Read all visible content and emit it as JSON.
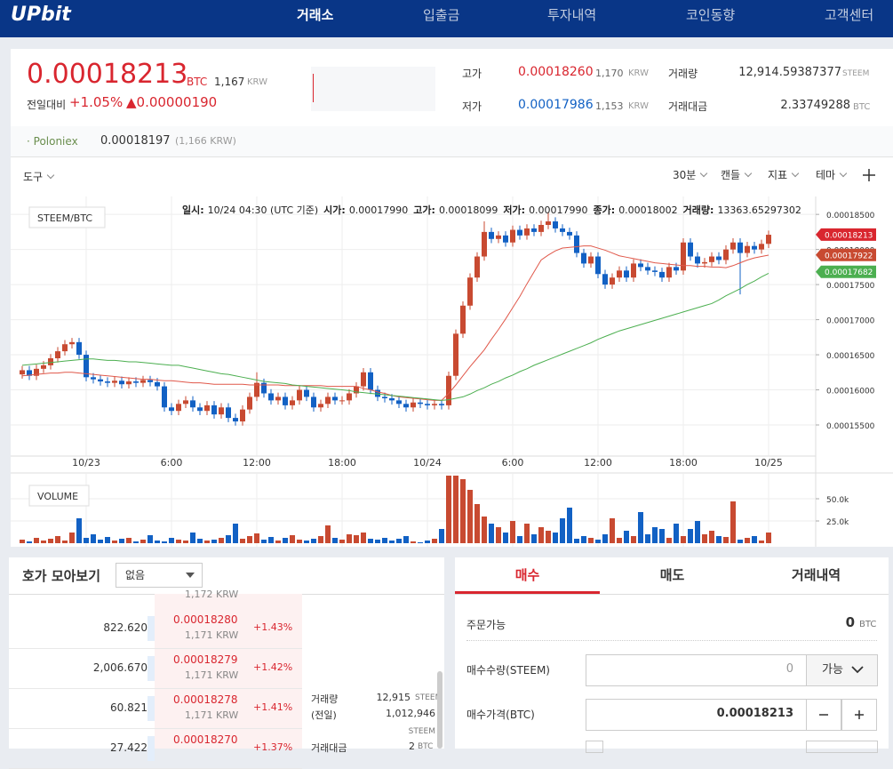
{
  "nav": {
    "logo": "UPbit",
    "items": [
      "거래소",
      "입출금",
      "투자내역",
      "코인동향",
      "고객센터"
    ]
  },
  "ticker": {
    "price": "0.00018213",
    "unit": "BTC",
    "krw": "1,167",
    "krw_unit": "KRW",
    "change_label": "전일대비",
    "change_pct": "+1.05%",
    "change_amt": "▲0.00000190"
  },
  "stats": {
    "high": {
      "label": "고가",
      "value": "0.00018260",
      "krw": "1,170",
      "unit": "KRW"
    },
    "low": {
      "label": "저가",
      "value": "0.00017986",
      "krw": "1,153",
      "unit": "KRW"
    },
    "volume": {
      "label": "거래량",
      "value": "12,914.59387377",
      "unit": "STEEM"
    },
    "amount": {
      "label": "거래대금",
      "value": "2.33749288",
      "unit": "BTC"
    }
  },
  "exchange": {
    "name": "· Poloniex",
    "price": "0.00018197",
    "krw": "(1,166 KRW)"
  },
  "toolbar": {
    "left": "도구",
    "right": [
      "30분",
      "캔들",
      "지표",
      "테마"
    ]
  },
  "chart_data": {
    "type": "candlestick",
    "symbol": "STEEM/BTC",
    "info": [
      {
        "label": "일시:",
        "value": "10/24 04:30 (UTC 기준)"
      },
      {
        "label": "시가:",
        "value": "0.00017990"
      },
      {
        "label": "고가:",
        "value": "0.00018099"
      },
      {
        "label": "저가:",
        "value": "0.00017990"
      },
      {
        "label": "종가:",
        "value": "0.00018002"
      },
      {
        "label": "거래량:",
        "value": "13363.65297302"
      }
    ],
    "categories": [
      null,
      null,
      null,
      null,
      null,
      null,
      null,
      null,
      null,
      "10/23",
      null,
      null,
      null,
      null,
      null,
      null,
      null,
      null,
      null,
      null,
      null,
      "6:00",
      null,
      null,
      null,
      null,
      null,
      null,
      null,
      null,
      null,
      null,
      null,
      "12:00",
      null,
      null,
      null,
      null,
      null,
      null,
      null,
      null,
      null,
      null,
      null,
      "18:00",
      null,
      null,
      null,
      null,
      null,
      null,
      null,
      null,
      null,
      null,
      null,
      "10/24",
      null,
      null,
      null,
      null,
      null,
      null,
      null,
      null,
      null,
      null,
      null,
      "6:00",
      null,
      null,
      null,
      null,
      null,
      null,
      null,
      null,
      null,
      null,
      null,
      "12:00",
      null,
      null,
      null,
      null,
      null,
      null,
      null,
      null,
      null,
      null,
      null,
      "18:00",
      null,
      null,
      null,
      null,
      null,
      null,
      null,
      null,
      null,
      null,
      null,
      "10/25"
    ],
    "open": [
      0.0001622,
      0.0001628,
      0.000162,
      0.000163,
      0.0001635,
      0.0001645,
      0.0001655,
      0.0001665,
      0.0001668,
      0.000165,
      0.0001618,
      0.0001615,
      0.0001612,
      0.000161,
      0.0001613,
      0.0001608,
      0.0001612,
      0.000161,
      0.0001614,
      0.0001611,
      0.0001605,
      0.0001575,
      0.000157,
      0.000158,
      0.0001585,
      0.0001575,
      0.000157,
      0.0001578,
      0.0001565,
      0.0001575,
      0.000156,
      0.0001555,
      0.0001572,
      0.000159,
      0.000161,
      0.0001595,
      0.0001585,
      0.000159,
      0.0001578,
      0.0001585,
      0.00016,
      0.000159,
      0.0001575,
      0.000158,
      0.000159,
      0.0001585,
      0.0001585,
      0.0001595,
      0.0001605,
      0.0001625,
      0.00016,
      0.000159,
      0.0001588,
      0.0001585,
      0.000158,
      0.0001575,
      0.0001582,
      0.000158,
      0.0001578,
      0.000158,
      0.0001578,
      0.000162,
      0.000168,
      0.000172,
      0.000176,
      0.000179,
      0.0001825,
      0.0001815,
      0.000182,
      0.000181,
      0.0001828,
      0.000182,
      0.000183,
      0.0001825,
      0.0001835,
      0.000184,
      0.000183,
      0.0001825,
      0.000182,
      0.0001795,
      0.000178,
      0.000179,
      0.0001765,
      0.000175,
      0.000176,
      0.000177,
      0.000176,
      0.000178,
      0.0001775,
      0.000177,
      0.0001768,
      0.000176,
      0.0001775,
      0.000177,
      0.000181,
      0.000179,
      0.000178,
      0.0001782,
      0.000179,
      0.0001785,
      0.00018,
      0.000181,
      0.0001795,
      0.0001805,
      0.00018,
      0.0001808
    ],
    "high": [
      0.0001634,
      0.0001634,
      0.0001636,
      0.0001641,
      0.0001651,
      0.0001661,
      0.0001671,
      0.0001674,
      0.0001674,
      0.0001656,
      0.0001624,
      0.0001621,
      0.0001618,
      0.0001619,
      0.0001619,
      0.0001618,
      0.0001618,
      0.000162,
      0.000162,
      0.0001617,
      0.0001611,
      0.0001581,
      0.0001586,
      0.0001591,
      0.0001591,
      0.0001581,
      0.0001584,
      0.0001584,
      0.0001581,
      0.0001581,
      0.0001566,
      0.0001578,
      0.0001596,
      0.0001625,
      0.0001616,
      0.0001601,
      0.0001596,
      0.0001596,
      0.0001591,
      0.0001606,
      0.0001606,
      0.0001596,
      0.0001586,
      0.0001596,
      0.0001596,
      0.0001591,
      0.0001601,
      0.0001611,
      0.0001631,
      0.0001631,
      0.0001606,
      0.0001596,
      0.0001594,
      0.0001591,
      0.0001586,
      0.0001588,
      0.0001588,
      0.0001586,
      0.0001586,
      0.0001586,
      0.0001626,
      0.0001686,
      0.0001726,
      0.0001766,
      0.0001796,
      0.000184,
      0.0001831,
      0.0001826,
      0.0001826,
      0.0001834,
      0.0001834,
      0.0001836,
      0.0001836,
      0.0001841,
      0.0001853,
      0.0001846,
      0.0001836,
      0.0001831,
      0.0001826,
      0.0001801,
      0.0001796,
      0.0001796,
      0.0001771,
      0.0001766,
      0.0001776,
      0.0001776,
      0.0001786,
      0.0001786,
      0.0001781,
      0.0001776,
      0.0001774,
      0.0001781,
      0.0001781,
      0.0001816,
      0.0001816,
      0.0001796,
      0.0001788,
      0.0001796,
      0.0001796,
      0.0001806,
      0.0001816,
      0.0001816,
      0.0001811,
      0.0001811,
      0.0001814,
      0.0001827
    ],
    "low": [
      0.0001616,
      0.0001614,
      0.0001614,
      0.0001624,
      0.0001629,
      0.0001639,
      0.0001649,
      0.0001659,
      0.0001644,
      0.0001612,
      0.0001609,
      0.0001606,
      0.0001604,
      0.0001604,
      0.0001602,
      0.0001602,
      0.0001604,
      0.0001604,
      0.0001605,
      0.0001599,
      0.0001569,
      0.0001564,
      0.0001564,
      0.0001574,
      0.0001569,
      0.0001564,
      0.0001564,
      0.0001559,
      0.0001559,
      0.0001554,
      0.0001549,
      0.0001549,
      0.0001566,
      0.0001584,
      0.0001589,
      0.0001579,
      0.0001579,
      0.0001572,
      0.0001572,
      0.0001579,
      0.0001584,
      0.0001569,
      0.0001569,
      0.0001574,
      0.0001579,
      0.0001579,
      0.0001579,
      0.0001589,
      0.0001599,
      0.0001594,
      0.0001584,
      0.0001582,
      0.0001579,
      0.0001574,
      0.0001569,
      0.0001569,
      0.0001574,
      0.0001572,
      0.0001572,
      0.0001572,
      0.0001572,
      0.0001614,
      0.0001674,
      0.0001714,
      0.0001754,
      0.0001784,
      0.0001809,
      0.0001809,
      0.0001804,
      0.0001804,
      0.0001814,
      0.0001814,
      0.0001819,
      0.0001819,
      0.0001829,
      0.0001824,
      0.0001819,
      0.0001814,
      0.0001789,
      0.0001774,
      0.0001774,
      0.0001759,
      0.0001744,
      0.0001744,
      0.0001754,
      0.0001754,
      0.0001754,
      0.0001769,
      0.0001764,
      0.0001762,
      0.0001754,
      0.0001754,
      0.0001764,
      0.0001764,
      0.0001784,
      0.0001774,
      0.0001774,
      0.0001776,
      0.0001779,
      0.0001779,
      0.0001794,
      0.0001736,
      0.0001789,
      0.0001794,
      0.0001794,
      0.0001802
    ],
    "close": [
      0.0001628,
      0.000162,
      0.000163,
      0.0001635,
      0.0001645,
      0.0001655,
      0.0001665,
      0.0001668,
      0.000165,
      0.0001618,
      0.0001615,
      0.0001612,
      0.000161,
      0.0001613,
      0.0001608,
      0.0001612,
      0.000161,
      0.0001614,
      0.0001611,
      0.0001605,
      0.0001575,
      0.000157,
      0.000158,
      0.0001585,
      0.0001575,
      0.000157,
      0.0001578,
      0.0001565,
      0.0001575,
      0.000156,
      0.0001555,
      0.0001572,
      0.000159,
      0.000161,
      0.0001595,
      0.0001585,
      0.000159,
      0.0001578,
      0.0001585,
      0.00016,
      0.000159,
      0.0001575,
      0.000158,
      0.000159,
      0.0001585,
      0.0001585,
      0.0001595,
      0.0001605,
      0.0001625,
      0.00016,
      0.000159,
      0.0001588,
      0.0001585,
      0.000158,
      0.0001575,
      0.0001582,
      0.000158,
      0.0001578,
      0.000158,
      0.0001578,
      0.000162,
      0.000168,
      0.000172,
      0.000176,
      0.000179,
      0.0001825,
      0.0001815,
      0.000182,
      0.000181,
      0.0001828,
      0.000182,
      0.000183,
      0.0001825,
      0.0001835,
      0.000184,
      0.000183,
      0.0001825,
      0.000182,
      0.0001795,
      0.000178,
      0.000179,
      0.0001765,
      0.000175,
      0.000176,
      0.000177,
      0.000176,
      0.000178,
      0.0001775,
      0.000177,
      0.0001768,
      0.000176,
      0.0001775,
      0.000177,
      0.000181,
      0.000179,
      0.000178,
      0.0001782,
      0.000179,
      0.0001785,
      0.00018,
      0.000181,
      0.0001795,
      0.0001805,
      0.00018,
      0.0001808,
      0.0001821
    ],
    "up_color": "#c84a31",
    "down_color": "#1261c4",
    "lines": [
      {
        "color": "#e0584a",
        "values": [
          0.000162,
          0.0001621,
          0.0001622,
          0.0001623,
          0.0001624,
          0.0001624,
          0.0001625,
          0.0001625,
          0.0001624,
          0.0001623,
          0.0001622,
          0.0001621,
          0.000162,
          0.0001619,
          0.0001618,
          0.0001617,
          0.0001616,
          0.0001615,
          0.0001615,
          0.0001614,
          0.0001613,
          0.0001613,
          0.0001612,
          0.0001611,
          0.000161,
          0.000161,
          0.0001609,
          0.0001608,
          0.0001608,
          0.0001608,
          0.0001608,
          0.0001608,
          0.0001607,
          0.0001607,
          0.0001607,
          0.0001607,
          0.0001607,
          0.0001606,
          0.0001606,
          0.0001606,
          0.0001606,
          0.0001606,
          0.0001606,
          0.0001605,
          0.0001605,
          0.0001605,
          0.0001605,
          0.0001605,
          0.0001602,
          0.00016,
          0.0001597,
          0.0001595,
          0.0001592,
          0.000159,
          0.0001589,
          0.0001588,
          0.0001587,
          0.0001586,
          0.0001585,
          0.0001585,
          0.0001595,
          0.0001607,
          0.000162,
          0.0001633,
          0.0001645,
          0.0001657,
          0.0001672,
          0.0001686,
          0.0001701,
          0.0001717,
          0.0001733,
          0.0001751,
          0.0001768,
          0.0001785,
          0.0001792,
          0.0001798,
          0.0001802,
          0.0001803,
          0.0001804,
          0.0001805,
          0.0001805,
          0.0001802,
          0.0001799,
          0.0001795,
          0.0001791,
          0.0001789,
          0.0001787,
          0.0001785,
          0.0001783,
          0.0001781,
          0.000178,
          0.0001779,
          0.0001778,
          0.0001777,
          0.0001777,
          0.0001776,
          0.0001776,
          0.0001775,
          0.0001775,
          0.0001774,
          0.0001777,
          0.0001781,
          0.0001785,
          0.0001788,
          0.000179,
          0.0001792
        ]
      },
      {
        "color": "#4caf50",
        "values": [
          0.0001635,
          0.0001636,
          0.0001637,
          0.0001638,
          0.0001639,
          0.000164,
          0.0001641,
          0.0001642,
          0.0001643,
          0.0001644,
          0.0001644,
          0.0001643,
          0.0001642,
          0.0001642,
          0.0001641,
          0.000164,
          0.000164,
          0.0001639,
          0.0001638,
          0.0001637,
          0.0001636,
          0.0001635,
          0.0001635,
          0.0001633,
          0.0001631,
          0.0001629,
          0.0001627,
          0.0001625,
          0.0001623,
          0.0001622,
          0.000162,
          0.0001618,
          0.0001616,
          0.0001614,
          0.0001612,
          0.0001611,
          0.000161,
          0.0001609,
          0.0001607,
          0.0001606,
          0.0001605,
          0.0001604,
          0.0001603,
          0.0001602,
          0.0001601,
          0.00016,
          0.0001599,
          0.0001597,
          0.0001596,
          0.0001595,
          0.0001594,
          0.0001593,
          0.0001592,
          0.0001591,
          0.000159,
          0.0001589,
          0.0001588,
          0.0001587,
          0.0001586,
          0.0001585,
          0.0001586,
          0.0001588,
          0.000159,
          0.0001594,
          0.0001599,
          0.0001603,
          0.0001608,
          0.0001612,
          0.0001617,
          0.0001621,
          0.0001626,
          0.000163,
          0.0001635,
          0.0001639,
          0.0001643,
          0.0001647,
          0.0001651,
          0.0001655,
          0.0001659,
          0.0001663,
          0.0001667,
          0.0001672,
          0.0001676,
          0.000168,
          0.0001684,
          0.0001687,
          0.000169,
          0.0001693,
          0.0001696,
          0.0001699,
          0.0001702,
          0.0001705,
          0.0001708,
          0.0001711,
          0.0001714,
          0.0001717,
          0.000172,
          0.0001723,
          0.0001728,
          0.0001734,
          0.0001739,
          0.0001744,
          0.000175,
          0.0001755,
          0.0001761,
          0.0001766
        ]
      }
    ],
    "price_tags": [
      {
        "value": 0.00018213,
        "label": "0.00018213",
        "color": "#d9262f"
      },
      {
        "value": 0.00017922,
        "label": "0.00017922",
        "color": "#c84a31"
      },
      {
        "value": 0.00017682,
        "label": "0.00017682",
        "color": "#4caf50"
      }
    ],
    "ylim": [
      0.0001512,
      0.0001873
    ],
    "yticks": [
      {
        "value": 0.000185,
        "label": "0.00018500"
      },
      {
        "value": 0.00018,
        "label": "0.00018000"
      },
      {
        "value": 0.000175,
        "label": "0.00017500"
      },
      {
        "value": 0.00017,
        "label": "0.00017000"
      },
      {
        "value": 0.000165,
        "label": "0.00016500"
      },
      {
        "value": 0.00016,
        "label": "0.00016000"
      },
      {
        "value": 0.000155,
        "label": "0.00015500"
      }
    ],
    "grid": true,
    "volume": {
      "label": "VOLUME",
      "ylim": [
        0,
        76000
      ],
      "yticks": [
        {
          "value": 50000,
          "label": "50.0k"
        },
        {
          "value": 25000,
          "label": "25.0k"
        }
      ],
      "values": [
        4000,
        2000,
        6000,
        3000,
        5000,
        8000,
        3000,
        12000,
        28000,
        6000,
        10000,
        4000,
        7000,
        3000,
        5000,
        6000,
        2000,
        4000,
        9000,
        3000,
        2000,
        6000,
        4000,
        3000,
        12000,
        5000,
        3000,
        4000,
        6000,
        9000,
        22000,
        5000,
        8000,
        11000,
        4000,
        7000,
        3000,
        6000,
        9000,
        4000,
        3000,
        5000,
        8000,
        20000,
        6000,
        4000,
        10000,
        9000,
        12000,
        5000,
        4000,
        6000,
        3000,
        5000,
        8000,
        2000,
        1000,
        3000,
        5000,
        16000,
        76000,
        76000,
        72000,
        60000,
        44000,
        30000,
        22000,
        18000,
        12000,
        25000,
        8000,
        22000,
        10000,
        18000,
        14000,
        12000,
        28000,
        40000,
        5000,
        8000,
        6000,
        4000,
        10000,
        28000,
        6000,
        14000,
        8000,
        35000,
        10000,
        18000,
        16000,
        6000,
        22000,
        8000,
        16000,
        25000,
        10000,
        14000,
        8000,
        7000,
        47000,
        4000,
        6000,
        8000,
        3000,
        12000
      ]
    }
  },
  "orderbook": {
    "title": "호가 모아보기",
    "select": "없음",
    "top_krw": "1,172 KRW",
    "rows": [
      {
        "qty": "822.620",
        "price": "0.00018280",
        "krw": "1,171 KRW",
        "pct": "+1.43%"
      },
      {
        "qty": "2,006.670",
        "price": "0.00018279",
        "krw": "1,171 KRW",
        "pct": "+1.42%"
      },
      {
        "qty": "60.821",
        "price": "0.00018278",
        "krw": "1,171 KRW",
        "pct": "+1.41%"
      },
      {
        "qty": "27.422",
        "price": "0.00018270",
        "pct": "+1.37%"
      }
    ],
    "info": {
      "volume_label": "거래량",
      "volume": "12,915",
      "volume_unit": "STEEM",
      "prev_label": "(전일)",
      "prev": "1,012,946",
      "prev_unit": "STEEM",
      "amount_label": "거래대금",
      "amount": "2",
      "amount_unit": "BTC"
    }
  },
  "order_form": {
    "tabs": [
      "매수",
      "매도",
      "거래내역"
    ],
    "available_label": "주문가능",
    "available": "0",
    "available_unit": "BTC",
    "qty_label": "매수수량(STEEM)",
    "qty": "0",
    "qty_button": "가능",
    "price_label": "매수가격(BTC)",
    "price": "0.00018213"
  }
}
